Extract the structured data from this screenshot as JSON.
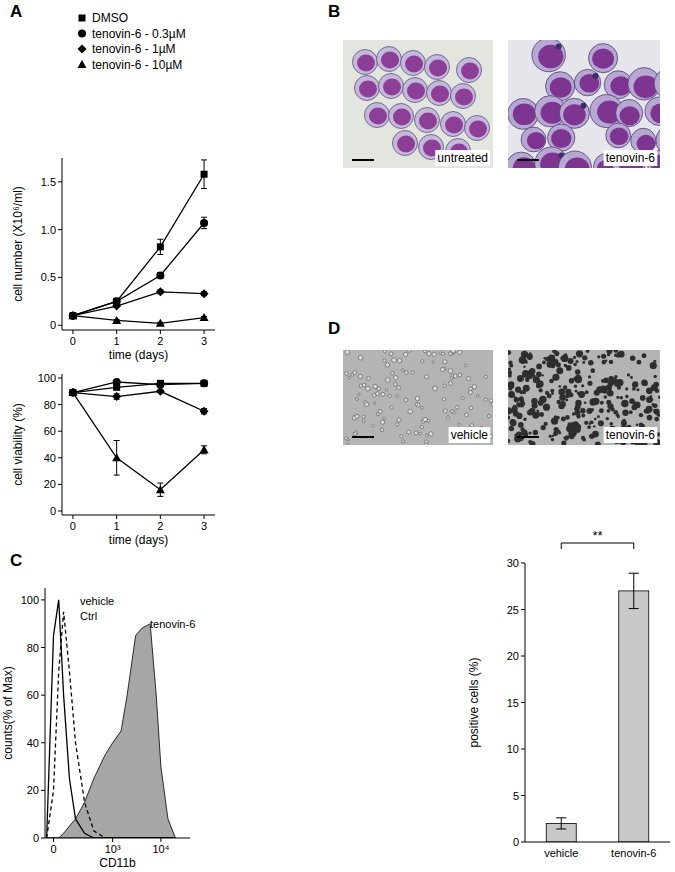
{
  "panel_labels": [
    "A",
    "B",
    "C",
    "D"
  ],
  "micrographs_B": [
    "untreated",
    "tenovin-6"
  ],
  "micrographs_D": [
    "vehicle",
    "tenovin-6"
  ],
  "chart_data": [
    {
      "type": "line",
      "y_label": "cell number (X10⁶/ml)",
      "x_label": "time (days)",
      "legend": "top-left",
      "x": [
        0,
        1,
        2,
        3
      ],
      "xlim": [
        -0.25,
        3.25
      ],
      "xticks": [
        0,
        1,
        2,
        3
      ],
      "ylim": [
        -0.05,
        1.75
      ],
      "yticks": [
        0,
        0.5,
        {
          "value": 1,
          "label": "1.0"
        },
        1.5
      ],
      "series": [
        {
          "name": "DMSO",
          "marker": "square",
          "color": "#000000",
          "values": [
            0.1,
            0.25,
            0.82,
            1.58
          ],
          "errors": [
            0,
            0.02,
            0.08,
            0.15
          ]
        },
        {
          "name": "tenovin-6 - 0.3µM",
          "marker": "circle",
          "color": "#000000",
          "values": [
            0.1,
            0.25,
            0.52,
            1.07
          ],
          "errors": [
            0,
            0.02,
            0.03,
            0.06
          ]
        },
        {
          "name": "tenovin-6 - 1µM",
          "marker": "diamond",
          "color": "#000000",
          "values": [
            0.1,
            0.2,
            0.35,
            0.33
          ],
          "errors": [
            0,
            0.01,
            0.02,
            0.02
          ]
        },
        {
          "name": "tenovin-6 - 10µM",
          "marker": "triangle",
          "color": "#000000",
          "values": [
            0.1,
            0.05,
            0.02,
            0.08
          ],
          "errors": [
            0,
            0.01,
            0.01,
            0.01
          ]
        }
      ]
    },
    {
      "type": "line",
      "y_label": "cell viability (%)",
      "x_label": "time (days)",
      "x": [
        0,
        1,
        2,
        3
      ],
      "xlim": [
        -0.25,
        3.25
      ],
      "xticks": [
        0,
        1,
        2,
        3
      ],
      "ylim": [
        -3,
        103
      ],
      "yticks": [
        0,
        20,
        40,
        60,
        80,
        100
      ],
      "series": [
        {
          "marker": "square",
          "color": "#000000",
          "values": [
            89,
            93,
            96,
            96
          ],
          "errors": [
            0,
            1,
            1,
            1
          ]
        },
        {
          "marker": "circle",
          "color": "#000000",
          "values": [
            89,
            97,
            95,
            96
          ],
          "errors": [
            0,
            1,
            1,
            1
          ]
        },
        {
          "marker": "diamond",
          "color": "#000000",
          "values": [
            89,
            86,
            90,
            75
          ],
          "errors": [
            0,
            2,
            1,
            2
          ]
        },
        {
          "marker": "triangle",
          "color": "#000000",
          "values": [
            89,
            40,
            16,
            46
          ],
          "errors": [
            0,
            13,
            5,
            3
          ]
        }
      ]
    },
    {
      "type": "line",
      "y_label": "counts(% of Max)",
      "x_label": "CD11b",
      "x": [
        -40,
        0,
        30,
        60,
        100,
        150,
        250,
        400,
        700,
        1000,
        1500,
        2000,
        3000,
        4000,
        6000,
        8000,
        10000,
        14000,
        20000
      ],
      "xlim": [
        -50,
        40000
      ],
      "xticks": [
        0,
        {
          "value": 1000,
          "label": "10³"
        },
        {
          "value": 10000,
          "label": "10⁴"
        }
      ],
      "ylim": [
        0,
        105
      ],
      "yticks": [
        0,
        20,
        40,
        60,
        80,
        100
      ],
      "series": [
        {
          "name": "tenovin-6",
          "type": "area",
          "color": "#a6a6a6",
          "values": [
            0,
            0,
            0,
            2,
            5,
            8,
            15,
            25,
            35,
            40,
            45,
            60,
            85,
            88,
            90,
            60,
            30,
            8,
            0
          ]
        },
        {
          "name": "vehicle",
          "line_style": "solid",
          "color": "#000000",
          "values": [
            0,
            85,
            100,
            60,
            25,
            8,
            2,
            0,
            0,
            0,
            0,
            0,
            0,
            0,
            0,
            0,
            0,
            0,
            0
          ]
        },
        {
          "name": "Ctrl",
          "line_style": "dashed",
          "color": "#000000",
          "values": [
            0,
            20,
            70,
            95,
            70,
            40,
            15,
            3,
            0,
            0,
            0,
            0,
            0,
            0,
            0,
            0,
            0,
            0,
            0
          ]
        }
      ]
    },
    {
      "type": "bar",
      "y_label": "positive cells (%)",
      "categories": [
        "vehicle",
        "tenovin-6"
      ],
      "values": [
        2,
        27
      ],
      "errors": [
        0.6,
        1.9
      ],
      "color": "#c8c8c8",
      "ylim": [
        0,
        30
      ],
      "yticks": [
        0,
        5,
        10,
        15,
        20,
        25,
        30
      ],
      "annotation": "**"
    }
  ]
}
